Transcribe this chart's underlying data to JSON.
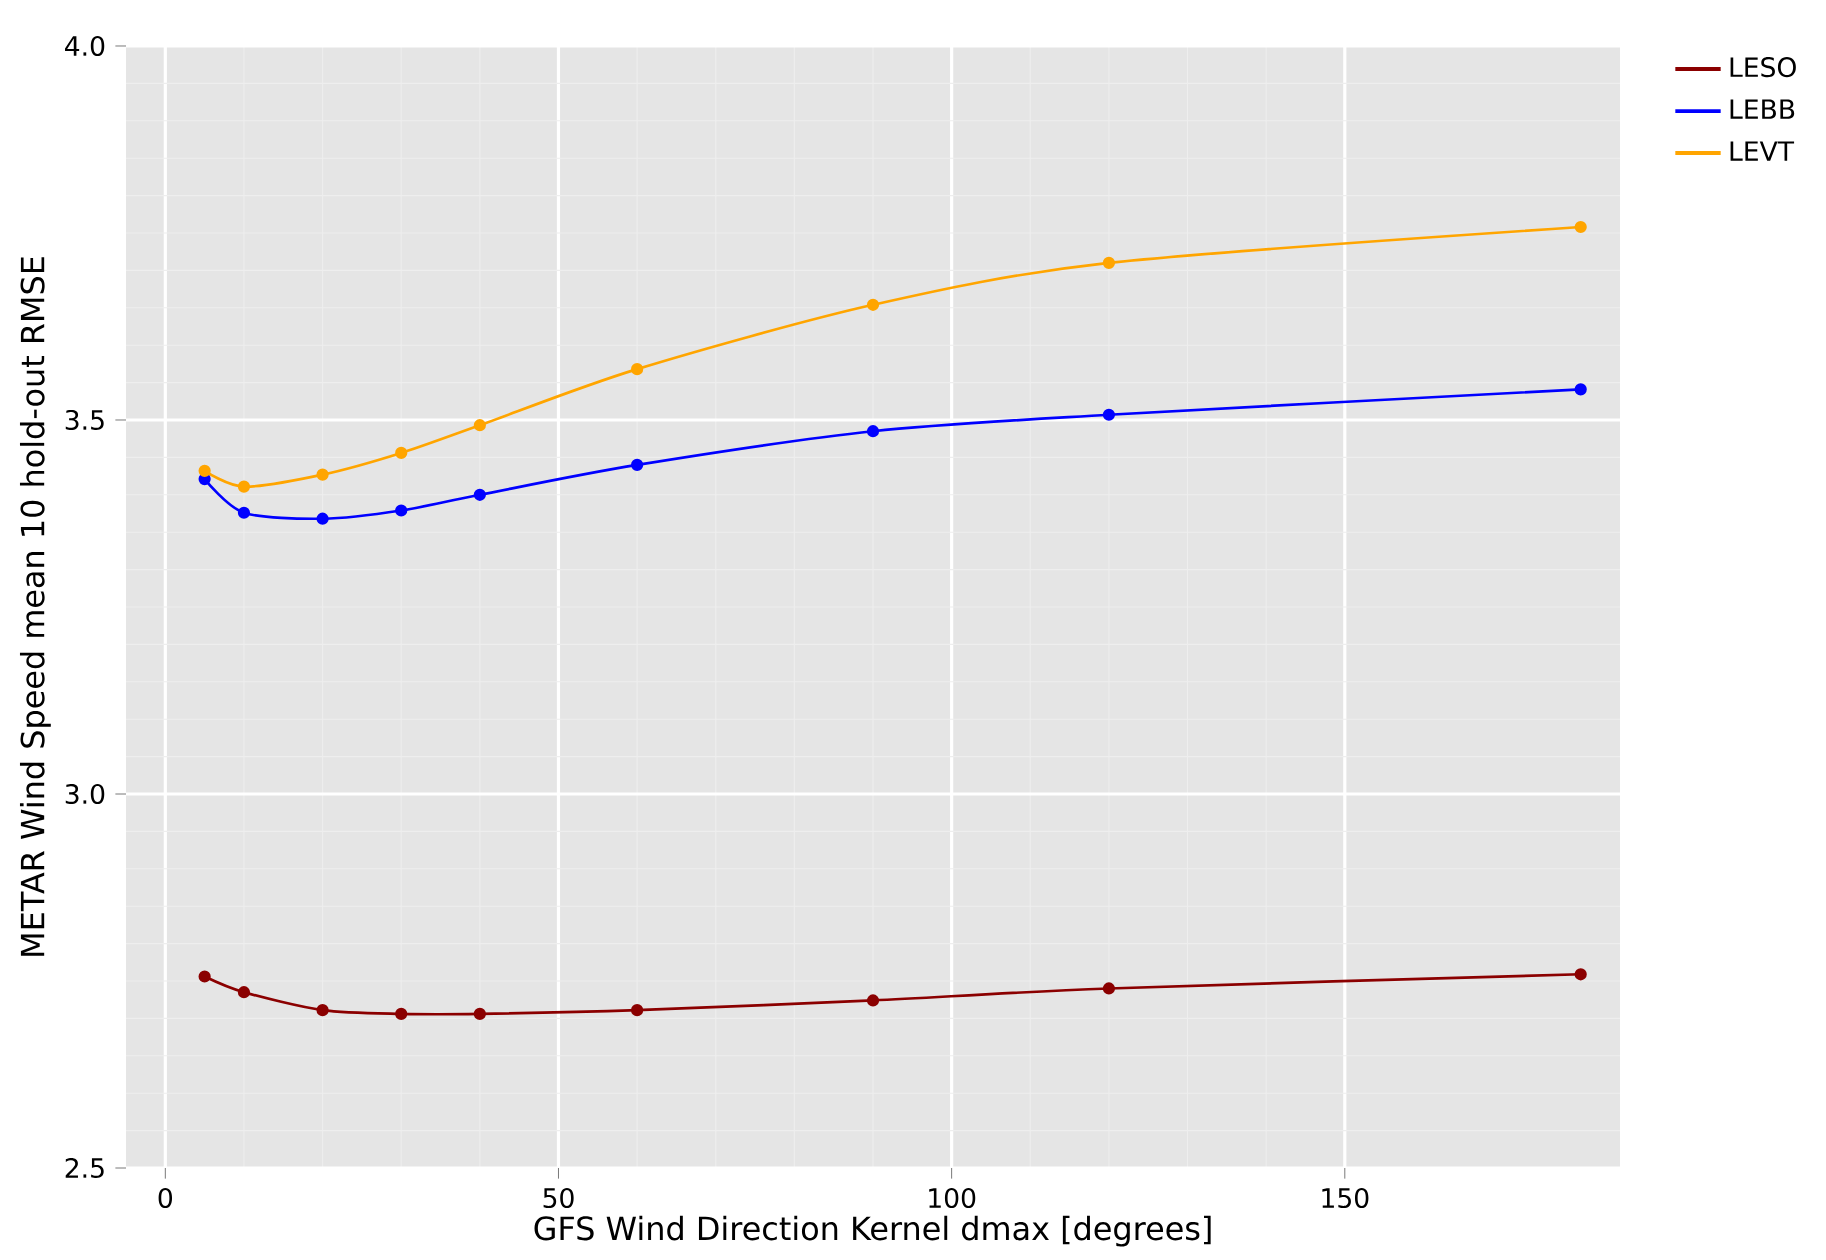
{
  "chart_data": {
    "type": "line",
    "xlabel": "GFS Wind Direction Kernel dmax [degrees]",
    "ylabel": "METAR Wind Speed mean 10 hold-out RMSE",
    "x": [
      5,
      10,
      20,
      30,
      40,
      60,
      90,
      120,
      180
    ],
    "series": [
      {
        "name": "LESO",
        "color": "#8b0000",
        "values": [
          2.756,
          2.735,
          2.711,
          2.706,
          2.706,
          2.711,
          2.724,
          2.74,
          2.759
        ]
      },
      {
        "name": "LEBB",
        "color": "#0000ff",
        "values": [
          3.421,
          3.376,
          3.368,
          3.379,
          3.4,
          3.44,
          3.485,
          3.507,
          3.541
        ]
      },
      {
        "name": "LEVT",
        "color": "#ffa500",
        "values": [
          3.432,
          3.411,
          3.427,
          3.456,
          3.493,
          3.568,
          3.654,
          3.71,
          3.758
        ]
      }
    ],
    "xlim": [
      -5,
      185
    ],
    "ylim": [
      2.5,
      4.0
    ],
    "xticks": [
      0,
      50,
      100,
      150
    ],
    "yticks": [
      {
        "value": 2.5,
        "label": "2.5"
      },
      {
        "value": 3.0,
        "label": "3.0"
      },
      {
        "value": 3.5,
        "label": "3.5"
      },
      {
        "value": 4.0,
        "label": "4.0"
      }
    ],
    "grid": true,
    "legend": "top right",
    "marker": "circle",
    "line_style": "solid"
  }
}
